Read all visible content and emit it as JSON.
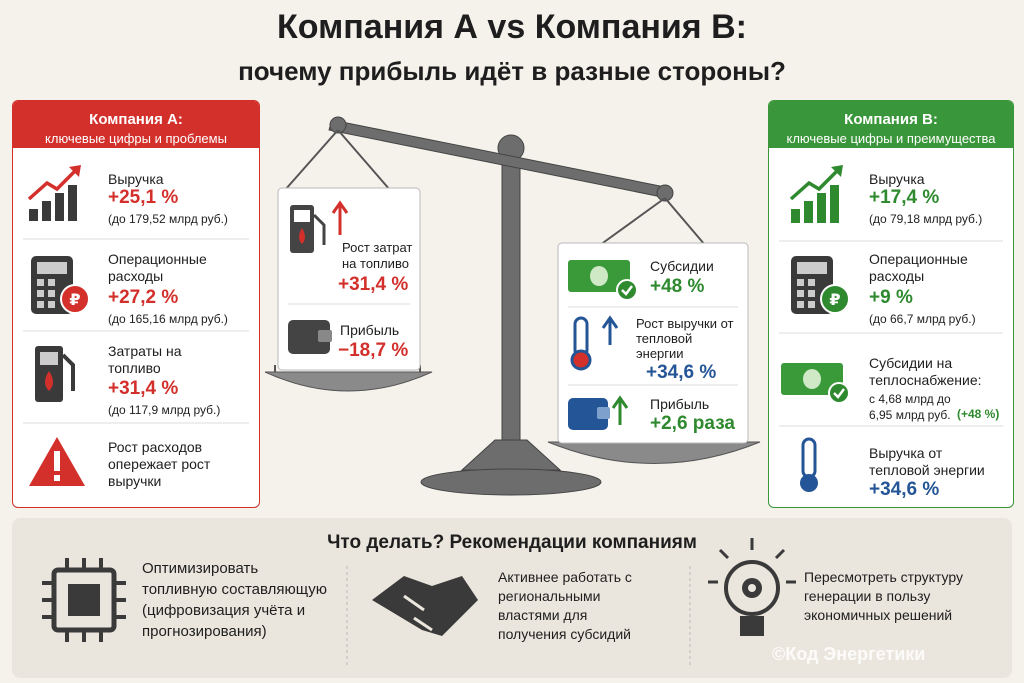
{
  "title": {
    "line1": "Компания А vs Компания В:",
    "line2": "почему прибыль идёт в разные стороны?"
  },
  "company_a": {
    "header": [
      "Компания А:",
      "ключевые цифры и проблемы"
    ],
    "items": [
      {
        "label": "Выручка",
        "value": "+25,1 %",
        "note": "(до 179,52 млрд руб.)"
      },
      {
        "label": "Операционные расходы",
        "value": "+27,2 %",
        "note": "(до 165,16 млрд руб.)"
      },
      {
        "label": "Затраты на топливо",
        "value": "+31,4 %",
        "note": "(до 117,9 млрд руб.)"
      },
      {
        "label": "Рост расходов опережает рост выручки"
      }
    ]
  },
  "scale_left": {
    "items": [
      {
        "label": "Рост затрат на топливо",
        "value": "+31,4 %"
      },
      {
        "label": "Прибыль",
        "value": "−18,7 %"
      }
    ]
  },
  "scale_right": {
    "items": [
      {
        "label": "Субсидии",
        "value": "+48 %"
      },
      {
        "label": "Рост выручки от тепловой энергии",
        "value": "+34,6 %"
      },
      {
        "label": "Прибыль",
        "value": "+2,6 раза"
      }
    ]
  },
  "company_b": {
    "header": [
      "Компания В:",
      "ключевые цифры и преимущества"
    ],
    "items": [
      {
        "label": "Выручка",
        "value": "+17,4 %",
        "note": "(до 79,18 млрд руб.)"
      },
      {
        "label": "Операционные расходы",
        "value": "+9 %",
        "note": "(до 66,7 млрд руб.)"
      },
      {
        "label": "Субсидии на теплоснабжение:",
        "note": "с 4,68 млрд до 6,95 млрд руб.",
        "highlight": "(+48 %)"
      },
      {
        "label": "Выручка от тепловой энергии",
        "value": "+34,6 %"
      }
    ]
  },
  "recommendations": {
    "title": "Что делать? Рекомендации компаниям",
    "items": [
      "Оптимизировать топливную составляющую (цифровизация учёта и прогнозирования)",
      "Активнее работать с региональными властями для получения субсидий",
      "Пересмотреть структуру генерации в пользу экономичных решений"
    ]
  },
  "watermark": "©Код Энергетики"
}
